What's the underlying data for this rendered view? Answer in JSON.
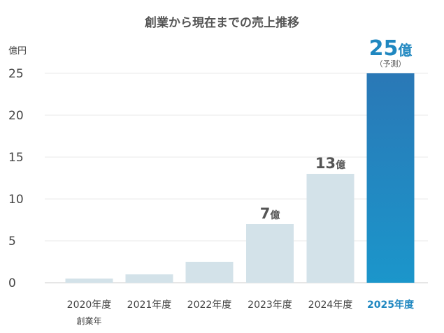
{
  "chart_data": {
    "type": "bar",
    "title": "創業から現在までの売上推移",
    "ylabel": "億円",
    "ylim": [
      0,
      25
    ],
    "yticks": [
      0,
      5,
      10,
      15,
      20,
      25
    ],
    "grid": true,
    "categories": [
      "2020年度",
      "2021年度",
      "2022年度",
      "2023年度",
      "2024年度",
      "2025年度"
    ],
    "category_notes": [
      "創業年",
      "",
      "",
      "",
      "",
      ""
    ],
    "values": [
      0.5,
      1,
      2.5,
      7,
      13,
      25
    ],
    "highlight_index": 5,
    "data_labels": [
      {
        "index": 3,
        "value": "7",
        "unit": "億",
        "note": ""
      },
      {
        "index": 4,
        "value": "13",
        "unit": "億",
        "note": ""
      },
      {
        "index": 5,
        "value": "25",
        "unit": "億",
        "note": "（予測）"
      }
    ],
    "colors": {
      "bar": "#d3e2e9",
      "highlight_top": "#2a78b6",
      "highlight_bottom": "#1b96cb",
      "highlight_text": "#1f87c0"
    }
  }
}
